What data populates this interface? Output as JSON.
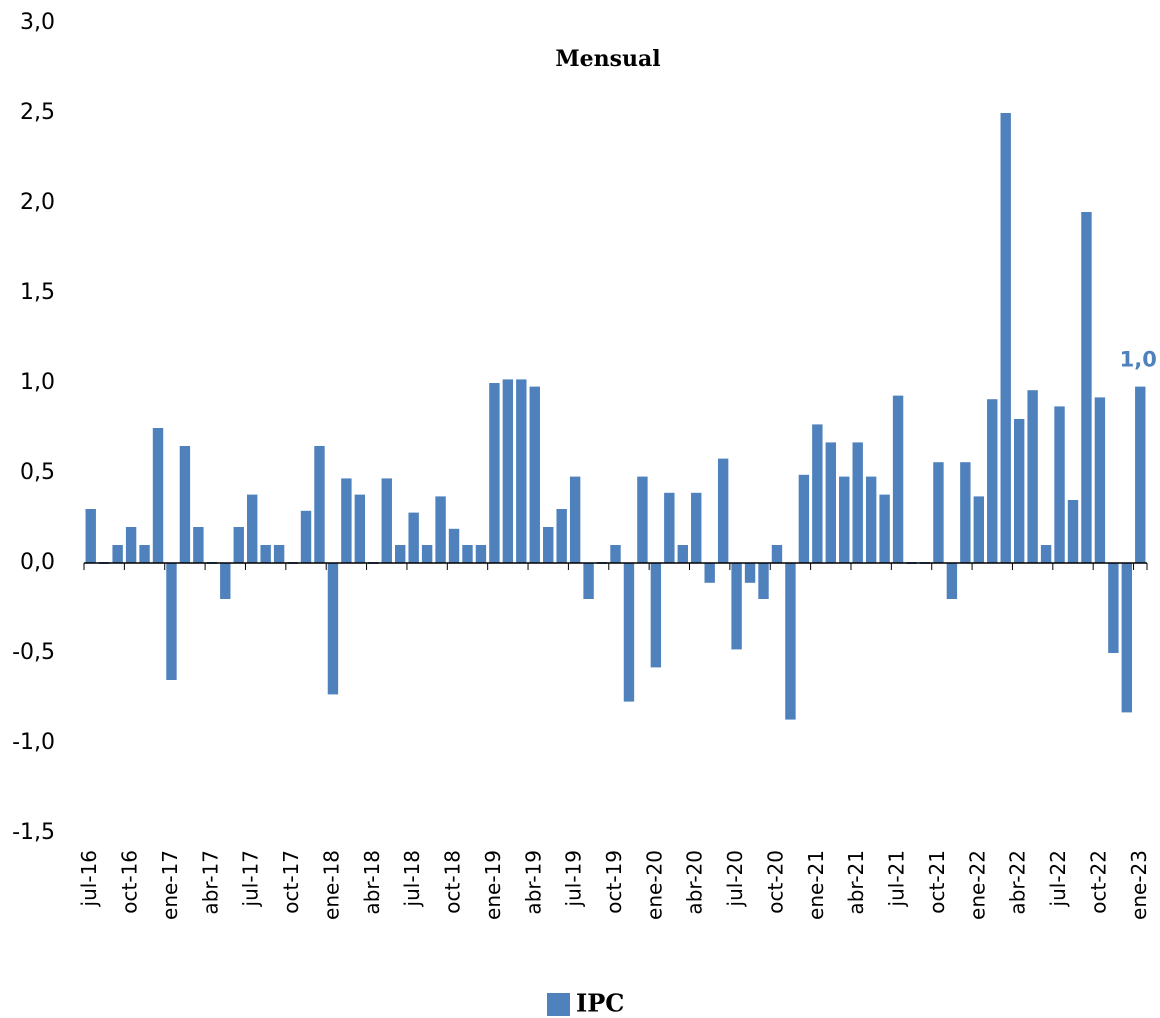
{
  "chart_data": {
    "type": "bar",
    "title": "Mensual",
    "categories": [
      "jul-16",
      null,
      null,
      "oct-16",
      null,
      null,
      "ene-17",
      null,
      null,
      "abr-17",
      null,
      null,
      "jul-17",
      null,
      null,
      "oct-17",
      null,
      null,
      "ene-18",
      null,
      null,
      "abr-18",
      null,
      null,
      "jul-18",
      null,
      null,
      "oct-18",
      null,
      null,
      "ene-19",
      null,
      null,
      "abr-19",
      null,
      null,
      "jul-19",
      null,
      null,
      "oct-19",
      null,
      null,
      "ene-20",
      null,
      null,
      "abr-20",
      null,
      null,
      "jul-20",
      null,
      null,
      "oct-20",
      null,
      null,
      "ene-21",
      null,
      null,
      "abr-21",
      null,
      null,
      "jul-21",
      null,
      null,
      "oct-21",
      null,
      null,
      "ene-22",
      null,
      null,
      "abr-22",
      null,
      null,
      "jul-22",
      null,
      null,
      "oct-22",
      null,
      null,
      "ene-23"
    ],
    "series": [
      {
        "name": "IPC",
        "color": "#4f81bd",
        "values": [
          0.3,
          0,
          0.1,
          0.2,
          0.1,
          0.75,
          -0.65,
          0.65,
          0.2,
          0,
          -0.2,
          0.2,
          0.38,
          0.1,
          0.1,
          0,
          0.29,
          0.65,
          -0.73,
          0.47,
          0.38,
          0,
          0.47,
          0.1,
          0.28,
          0.1,
          0.37,
          0.19,
          0.1,
          0.1,
          1.0,
          1.02,
          1.02,
          0.98,
          0.2,
          0.3,
          0.48,
          -0.2,
          0,
          0.1,
          -0.77,
          0.48,
          -0.58,
          0.39,
          0.1,
          0.39,
          -0.11,
          0.58,
          -0.48,
          -0.11,
          -0.2,
          0.1,
          -0.87,
          0.49,
          0.77,
          0.67,
          0.48,
          0.67,
          0.48,
          0.38,
          0.93,
          0,
          0,
          0.56,
          -0.2,
          0.56,
          0.37,
          0.91,
          2.5,
          0.8,
          0.96,
          0.1,
          0.87,
          0.35,
          1.95,
          0.92,
          -0.5,
          -0.83,
          0.98
        ],
        "value_labels": [
          null,
          null,
          null,
          null,
          null,
          null,
          null,
          null,
          null,
          null,
          null,
          null,
          null,
          null,
          null,
          null,
          null,
          null,
          null,
          null,
          null,
          null,
          null,
          null,
          null,
          null,
          null,
          null,
          null,
          null,
          null,
          null,
          null,
          null,
          null,
          null,
          null,
          null,
          null,
          null,
          null,
          null,
          null,
          null,
          null,
          null,
          null,
          null,
          null,
          null,
          null,
          null,
          null,
          null,
          null,
          null,
          null,
          null,
          null,
          null,
          null,
          null,
          null,
          null,
          null,
          null,
          null,
          null,
          null,
          null,
          null,
          null,
          null,
          null,
          null,
          null,
          null,
          null,
          "1,0"
        ]
      }
    ],
    "ylim": [
      -1.5,
      3.0
    ],
    "yticks": [
      {
        "value": -1.5,
        "label": "-1,5"
      },
      {
        "value": -1.0,
        "label": "-1,0"
      },
      {
        "value": -0.5,
        "label": "-0,5"
      },
      {
        "value": 0,
        "label": "0,0"
      },
      {
        "value": 0.5,
        "label": "0,5"
      },
      {
        "value": 1.0,
        "label": "1,0"
      },
      {
        "value": 1.5,
        "label": "1,5"
      },
      {
        "value": 2.0,
        "label": "2,0"
      },
      {
        "value": 2.5,
        "label": "2,5"
      },
      {
        "value": 3.0,
        "label": "3,0"
      }
    ],
    "grid": false,
    "legend": "bottom"
  }
}
